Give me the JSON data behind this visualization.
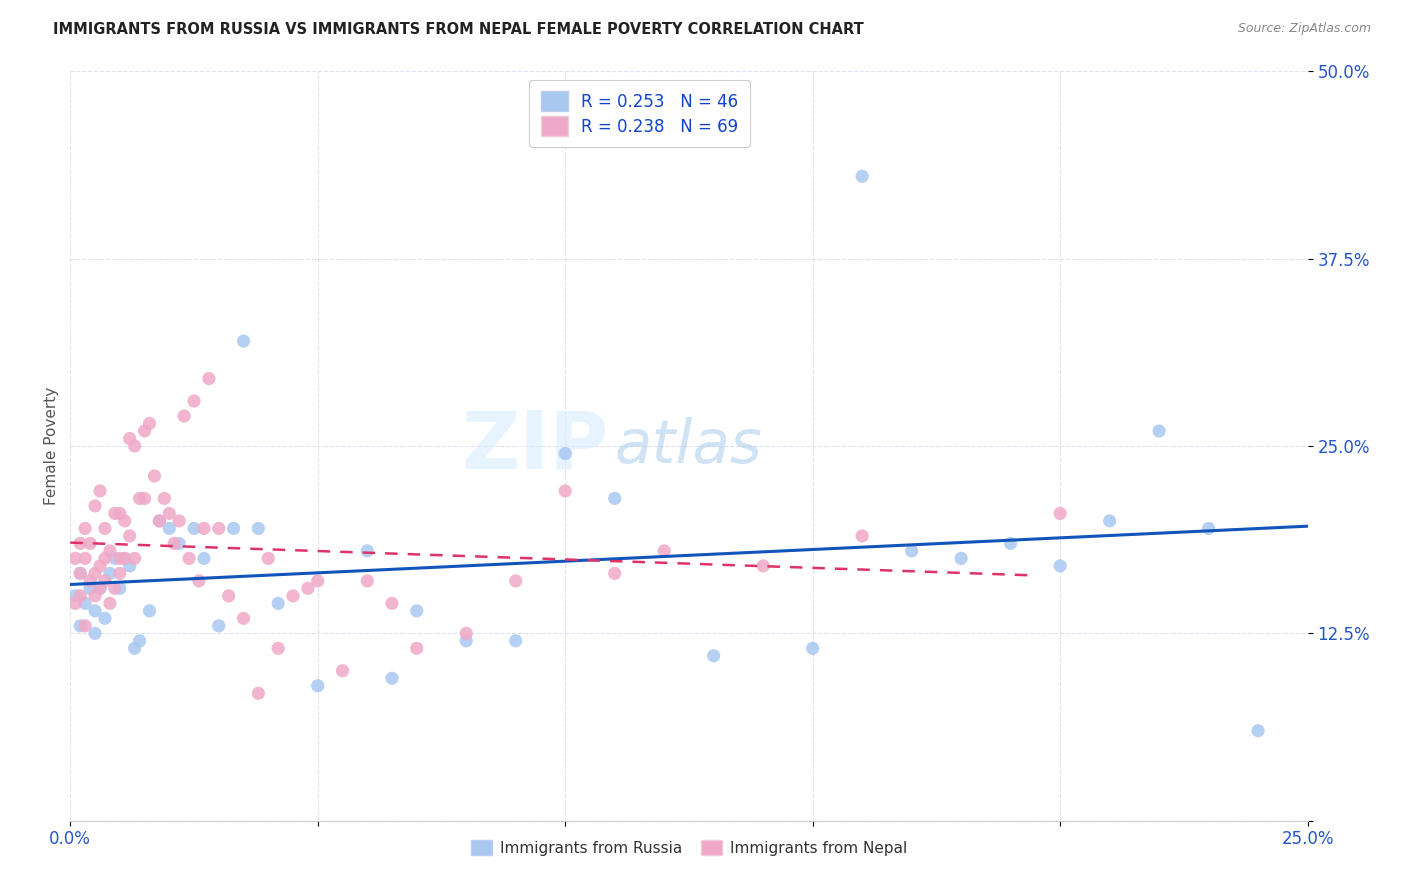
{
  "title": "IMMIGRANTS FROM RUSSIA VS IMMIGRANTS FROM NEPAL FEMALE POVERTY CORRELATION CHART",
  "source": "Source: ZipAtlas.com",
  "ylabel": "Female Poverty",
  "x_min": 0.0,
  "x_max": 0.25,
  "y_min": 0.0,
  "y_max": 0.5,
  "x_ticks": [
    0.0,
    0.05,
    0.1,
    0.15,
    0.2,
    0.25
  ],
  "x_tick_labels": [
    "0.0%",
    "",
    "",
    "",
    "",
    "25.0%"
  ],
  "y_ticks": [
    0.0,
    0.125,
    0.25,
    0.375,
    0.5
  ],
  "y_tick_labels": [
    "",
    "12.5%",
    "25.0%",
    "37.5%",
    "50.0%"
  ],
  "russia_color": "#a8c8f0",
  "nepal_color": "#f0a8c8",
  "russia_line_color": "#1155bb",
  "nepal_line_color": "#dd3366",
  "russia_R": 0.253,
  "russia_N": 46,
  "nepal_R": 0.238,
  "nepal_N": 69,
  "watermark_zip": "ZIP",
  "watermark_atlas": "atlas",
  "legend_label_russia": "Immigrants from Russia",
  "legend_label_nepal": "Immigrants from Nepal",
  "russia_x": [
    0.001,
    0.002,
    0.002,
    0.003,
    0.004,
    0.005,
    0.005,
    0.006,
    0.007,
    0.008,
    0.009,
    0.01,
    0.011,
    0.012,
    0.013,
    0.014,
    0.016,
    0.018,
    0.02,
    0.022,
    0.025,
    0.027,
    0.03,
    0.033,
    0.035,
    0.038,
    0.042,
    0.05,
    0.06,
    0.065,
    0.07,
    0.08,
    0.09,
    0.1,
    0.11,
    0.13,
    0.15,
    0.16,
    0.17,
    0.18,
    0.19,
    0.2,
    0.21,
    0.22,
    0.23,
    0.24
  ],
  "russia_y": [
    0.15,
    0.13,
    0.165,
    0.145,
    0.155,
    0.14,
    0.125,
    0.155,
    0.135,
    0.165,
    0.175,
    0.155,
    0.175,
    0.17,
    0.115,
    0.12,
    0.14,
    0.2,
    0.195,
    0.185,
    0.195,
    0.175,
    0.13,
    0.195,
    0.32,
    0.195,
    0.145,
    0.09,
    0.18,
    0.095,
    0.14,
    0.12,
    0.12,
    0.245,
    0.215,
    0.11,
    0.115,
    0.43,
    0.18,
    0.175,
    0.185,
    0.17,
    0.2,
    0.26,
    0.195,
    0.06
  ],
  "nepal_x": [
    0.001,
    0.001,
    0.002,
    0.002,
    0.002,
    0.003,
    0.003,
    0.003,
    0.004,
    0.004,
    0.005,
    0.005,
    0.005,
    0.006,
    0.006,
    0.006,
    0.007,
    0.007,
    0.007,
    0.008,
    0.008,
    0.009,
    0.009,
    0.01,
    0.01,
    0.01,
    0.011,
    0.011,
    0.012,
    0.012,
    0.013,
    0.013,
    0.014,
    0.015,
    0.015,
    0.016,
    0.017,
    0.018,
    0.019,
    0.02,
    0.021,
    0.022,
    0.023,
    0.024,
    0.025,
    0.026,
    0.027,
    0.028,
    0.03,
    0.032,
    0.035,
    0.038,
    0.04,
    0.042,
    0.045,
    0.048,
    0.05,
    0.055,
    0.06,
    0.065,
    0.07,
    0.08,
    0.09,
    0.1,
    0.11,
    0.12,
    0.14,
    0.16,
    0.2
  ],
  "nepal_y": [
    0.145,
    0.175,
    0.15,
    0.165,
    0.185,
    0.13,
    0.175,
    0.195,
    0.16,
    0.185,
    0.15,
    0.165,
    0.21,
    0.155,
    0.17,
    0.22,
    0.16,
    0.195,
    0.175,
    0.145,
    0.18,
    0.155,
    0.205,
    0.165,
    0.205,
    0.175,
    0.175,
    0.2,
    0.19,
    0.255,
    0.175,
    0.25,
    0.215,
    0.215,
    0.26,
    0.265,
    0.23,
    0.2,
    0.215,
    0.205,
    0.185,
    0.2,
    0.27,
    0.175,
    0.28,
    0.16,
    0.195,
    0.295,
    0.195,
    0.15,
    0.135,
    0.085,
    0.175,
    0.115,
    0.15,
    0.155,
    0.16,
    0.1,
    0.16,
    0.145,
    0.115,
    0.125,
    0.16,
    0.22,
    0.165,
    0.18,
    0.17,
    0.19,
    0.205
  ],
  "nepal_line_x_end": 0.195
}
